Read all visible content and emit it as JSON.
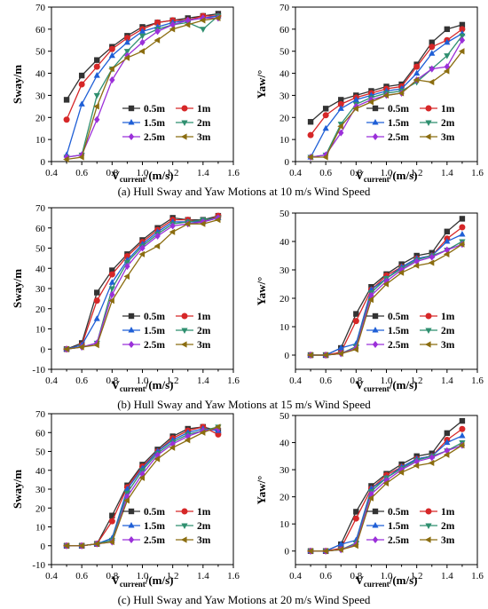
{
  "legend_labels": [
    "0.5m",
    "1m",
    "1.5m",
    "2m",
    "2.5m",
    "3m"
  ],
  "series_colors": [
    "#333333",
    "#d62728",
    "#1f5fd6",
    "#2f8f6f",
    "#9b30d9",
    "#8b6d10"
  ],
  "series_markers": [
    "square",
    "circle",
    "triangle-up",
    "triangle-down",
    "diamond",
    "triangle-left"
  ],
  "captions": [
    "(a) Hull Sway and Yaw Motions at 10 m/s Wind Speed",
    "(b) Hull Sway and Yaw Motions at 15 m/s Wind Speed",
    "(c) Hull Sway and Yaw Motions at 20 m/s Wind Speed"
  ],
  "chart_data": [
    {
      "type": "line",
      "ylabel": "Sway/m",
      "xlabel": "Vcurrent/(m/s)",
      "xlim": [
        0.4,
        1.6
      ],
      "ylim": [
        0,
        70
      ],
      "xticks": [
        "0.4",
        "0.6",
        "0.8",
        "1.0",
        "1.2",
        "1.4",
        "1.6"
      ],
      "yticks": [
        "0",
        "10",
        "20",
        "30",
        "40",
        "50",
        "60",
        "70"
      ],
      "legend": "bottom-right",
      "x": [
        0.5,
        0.6,
        0.7,
        0.8,
        0.9,
        1.0,
        1.1,
        1.2,
        1.3,
        1.4,
        1.5
      ],
      "series": [
        {
          "name": "0.5m",
          "values": [
            28,
            39,
            46,
            52,
            57,
            61,
            63,
            64,
            65,
            66,
            67
          ]
        },
        {
          "name": "1m",
          "values": [
            19,
            35,
            43,
            51,
            56,
            60,
            63,
            64,
            64,
            66,
            66
          ]
        },
        {
          "name": "1.5m",
          "values": [
            3,
            26,
            39,
            48,
            54,
            59,
            61,
            63,
            64,
            65,
            66
          ]
        },
        {
          "name": "2m",
          "values": [
            2,
            3,
            30,
            42,
            50,
            57,
            60,
            62,
            63,
            60,
            66
          ]
        },
        {
          "name": "2.5m",
          "values": [
            2,
            3,
            19,
            37,
            48,
            54,
            59,
            62,
            64,
            65,
            65
          ]
        },
        {
          "name": "3m",
          "values": [
            1,
            2,
            25,
            42,
            47,
            50,
            55,
            60,
            62,
            64,
            65
          ]
        }
      ]
    },
    {
      "type": "line",
      "ylabel": "Yaw/°",
      "xlabel": "Vcurrent/(m/s)",
      "xlim": [
        0.4,
        1.6
      ],
      "ylim": [
        0,
        70
      ],
      "xticks": [
        "0.4",
        "0.6",
        "0.8",
        "1.0",
        "1.2",
        "1.4",
        "1.6"
      ],
      "yticks": [
        "0",
        "10",
        "20",
        "30",
        "40",
        "50",
        "60",
        "70"
      ],
      "legend": "bottom-right",
      "x": [
        0.5,
        0.6,
        0.7,
        0.8,
        0.9,
        1.0,
        1.1,
        1.2,
        1.3,
        1.4,
        1.5
      ],
      "series": [
        {
          "name": "0.5m",
          "values": [
            18,
            24,
            28,
            30,
            32,
            34,
            35,
            44,
            54,
            60,
            62
          ]
        },
        {
          "name": "1m",
          "values": [
            12,
            21,
            26,
            29,
            31,
            33,
            34,
            43,
            52,
            55,
            60
          ]
        },
        {
          "name": "1.5m",
          "values": [
            2,
            15,
            24,
            28,
            30,
            32,
            33,
            40,
            49,
            54,
            58
          ]
        },
        {
          "name": "2m",
          "values": [
            2,
            3,
            17,
            26,
            29,
            31,
            32,
            36,
            42,
            48,
            57
          ]
        },
        {
          "name": "2.5m",
          "values": [
            2,
            3,
            13,
            25,
            28,
            30,
            31,
            37,
            42,
            43,
            55
          ]
        },
        {
          "name": "3m",
          "values": [
            2,
            2,
            16,
            24,
            27,
            30,
            31,
            37,
            36,
            41,
            50
          ]
        }
      ]
    },
    {
      "type": "line",
      "ylabel": "Sway/m",
      "xlabel": "Vcurrent/(m/s)",
      "xlim": [
        0.4,
        1.6
      ],
      "ylim": [
        -10,
        70
      ],
      "xticks": [
        "0.4",
        "0.6",
        "0.8",
        "1.0",
        "1.2",
        "1.4",
        "1.6"
      ],
      "yticks": [
        "-10",
        "0",
        "10",
        "20",
        "30",
        "40",
        "50",
        "60",
        "70"
      ],
      "legend": "bottom-right",
      "x": [
        0.5,
        0.6,
        0.7,
        0.8,
        0.9,
        1.0,
        1.1,
        1.2,
        1.3,
        1.4,
        1.5
      ],
      "series": [
        {
          "name": "0.5m",
          "values": [
            0,
            3,
            28,
            39,
            47,
            54,
            60,
            65,
            64,
            64,
            66
          ]
        },
        {
          "name": "1m",
          "values": [
            0,
            2,
            24,
            37,
            46,
            53,
            59,
            64,
            64,
            63,
            66
          ]
        },
        {
          "name": "1.5m",
          "values": [
            0,
            2,
            15,
            33,
            44,
            52,
            58,
            63,
            63,
            63,
            65
          ]
        },
        {
          "name": "2m",
          "values": [
            0,
            1,
            3,
            30,
            43,
            51,
            57,
            62,
            63,
            64,
            65
          ]
        },
        {
          "name": "2.5m",
          "values": [
            0,
            1,
            3,
            27,
            41,
            50,
            56,
            61,
            62,
            63,
            65
          ]
        },
        {
          "name": "3m",
          "values": [
            0,
            1,
            2,
            24,
            36,
            47,
            51,
            58,
            62,
            62,
            64
          ]
        }
      ]
    },
    {
      "type": "line",
      "ylabel": "Yaw/°",
      "xlabel": "Vcurrent/(m/s)",
      "xlim": [
        0.4,
        1.6
      ],
      "ylim": [
        -5,
        50
      ],
      "xticks": [
        "0.4",
        "0.6",
        "0.8",
        "1.0",
        "1.2",
        "1.4",
        "1.6"
      ],
      "yticks": [
        "0",
        "10",
        "20",
        "30",
        "40",
        "50"
      ],
      "legend": "bottom-right",
      "x": [
        0.5,
        0.6,
        0.7,
        0.8,
        0.9,
        1.0,
        1.1,
        1.2,
        1.3,
        1.4,
        1.5
      ],
      "series": [
        {
          "name": "0.5m",
          "values": [
            0,
            0,
            2.5,
            14.5,
            24,
            28.5,
            32,
            35,
            36,
            43.5,
            48
          ]
        },
        {
          "name": "1m",
          "values": [
            0,
            0,
            1,
            12,
            23,
            28,
            31,
            34,
            35,
            41,
            45
          ]
        },
        {
          "name": "1.5m",
          "values": [
            0,
            0,
            2.5,
            4,
            23,
            27,
            31,
            34,
            35,
            40,
            42.5
          ]
        },
        {
          "name": "2m",
          "values": [
            0,
            0,
            0.5,
            3,
            22,
            27,
            30.5,
            33.5,
            35,
            37,
            40
          ]
        },
        {
          "name": "2.5m",
          "values": [
            0,
            0,
            0.5,
            2.5,
            21,
            26,
            30,
            33,
            34.5,
            37,
            39
          ]
        },
        {
          "name": "3m",
          "values": [
            0,
            0,
            0.5,
            2,
            19.5,
            25,
            29,
            31.5,
            32.5,
            35.5,
            39
          ]
        }
      ]
    },
    {
      "type": "line",
      "ylabel": "Sway/m",
      "xlabel": "Vcurrent/(m/s)",
      "xlim": [
        0.4,
        1.6
      ],
      "ylim": [
        -10,
        70
      ],
      "xticks": [
        "0.4",
        "0.6",
        "0.8",
        "1.0",
        "1.2",
        "1.4",
        "1.6"
      ],
      "yticks": [
        "-10",
        "0",
        "10",
        "20",
        "30",
        "40",
        "50",
        "60",
        "70"
      ],
      "legend": "bottom-right",
      "x": [
        0.5,
        0.6,
        0.7,
        0.8,
        0.9,
        1.0,
        1.1,
        1.2,
        1.3,
        1.4,
        1.5
      ],
      "series": [
        {
          "name": "0.5m",
          "values": [
            0,
            0,
            1,
            16,
            32,
            43,
            51,
            58,
            62,
            63,
            61
          ]
        },
        {
          "name": "1m",
          "values": [
            0,
            0,
            1,
            13,
            31,
            42,
            50,
            57,
            61,
            63,
            59
          ]
        },
        {
          "name": "1.5m",
          "values": [
            0,
            0,
            1,
            4,
            30,
            41,
            50,
            56,
            60,
            62,
            61
          ]
        },
        {
          "name": "2m",
          "values": [
            0,
            0,
            1,
            3,
            28,
            40,
            49,
            55,
            59,
            61,
            63
          ]
        },
        {
          "name": "2.5m",
          "values": [
            0,
            0,
            1,
            2,
            26,
            38,
            48,
            54,
            58,
            61,
            62
          ]
        },
        {
          "name": "3m",
          "values": [
            0,
            0,
            1,
            2,
            24,
            36,
            46,
            52,
            56,
            60,
            63
          ]
        }
      ]
    },
    {
      "type": "line",
      "ylabel": "Yaw/°",
      "xlabel": "Vcurrent/(m/s)",
      "xlim": [
        0.4,
        1.6
      ],
      "ylim": [
        -5,
        50
      ],
      "xticks": [
        "0.4",
        "0.6",
        "0.8",
        "1.0",
        "1.2",
        "1.4",
        "1.6"
      ],
      "yticks": [
        "0",
        "10",
        "20",
        "30",
        "40",
        "50"
      ],
      "legend": "bottom-right",
      "x": [
        0.5,
        0.6,
        0.7,
        0.8,
        0.9,
        1.0,
        1.1,
        1.2,
        1.3,
        1.4,
        1.5
      ],
      "series": [
        {
          "name": "0.5m",
          "values": [
            0,
            0,
            2.5,
            14.5,
            24,
            28.5,
            32,
            35,
            36,
            43.5,
            48
          ]
        },
        {
          "name": "1m",
          "values": [
            0,
            0,
            1,
            12,
            23,
            28,
            31,
            34,
            35,
            41,
            45
          ]
        },
        {
          "name": "1.5m",
          "values": [
            0,
            0,
            2.5,
            4,
            23,
            27,
            31,
            34,
            35,
            40,
            42.5
          ]
        },
        {
          "name": "2m",
          "values": [
            0,
            0,
            0.5,
            3,
            22,
            27,
            30.5,
            33.5,
            35,
            37,
            40
          ]
        },
        {
          "name": "2.5m",
          "values": [
            0,
            0,
            0.5,
            2.5,
            21,
            26,
            30,
            33,
            34.5,
            37,
            39
          ]
        },
        {
          "name": "3m",
          "values": [
            0,
            0,
            0.5,
            2,
            19.5,
            25,
            29,
            31.5,
            32.5,
            35.5,
            39
          ]
        }
      ]
    }
  ]
}
